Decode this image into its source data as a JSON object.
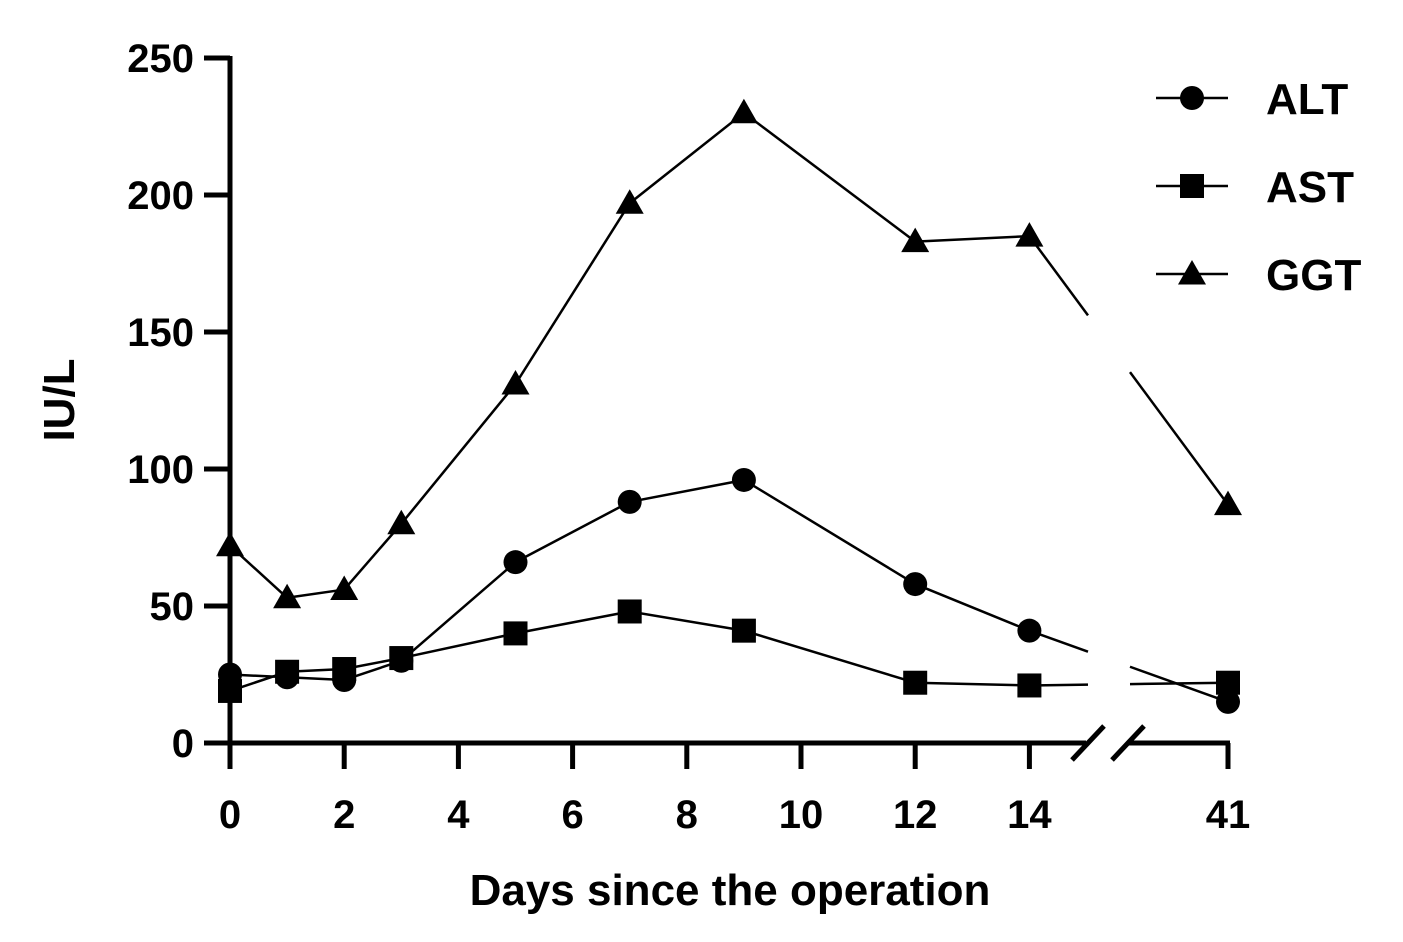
{
  "chart_data": {
    "type": "line",
    "title": "",
    "xlabel": "Days since the operation",
    "ylabel": "IU/L",
    "ylim": [
      0,
      250
    ],
    "yticks": [
      0,
      50,
      100,
      150,
      200,
      250
    ],
    "xticks": [
      "0",
      "2",
      "4",
      "6",
      "8",
      "10",
      "12",
      "14",
      "41"
    ],
    "x_axis_break": "between 14 and 41",
    "x": [
      0,
      1,
      2,
      3,
      5,
      7,
      9,
      12,
      14,
      41
    ],
    "series": [
      {
        "name": "ALT",
        "marker": "circle",
        "values": [
          25,
          24,
          23,
          30,
          66,
          88,
          96,
          58,
          41,
          15
        ]
      },
      {
        "name": "AST",
        "marker": "square",
        "values": [
          19,
          26,
          27,
          31,
          40,
          48,
          41,
          22,
          21,
          22
        ]
      },
      {
        "name": "GGT",
        "marker": "triangle",
        "values": [
          72,
          53,
          56,
          80,
          131,
          197,
          230,
          183,
          185,
          87
        ]
      }
    ],
    "legend_position": "top-right",
    "grid": false,
    "line_color": "#000000"
  }
}
